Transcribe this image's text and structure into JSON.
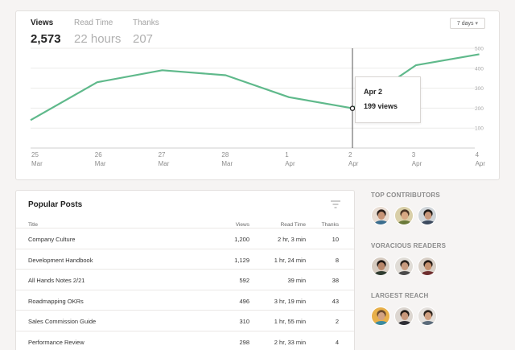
{
  "stats": {
    "metrics": [
      {
        "label": "Views",
        "value": "2,573"
      },
      {
        "label": "Read Time",
        "value": "22 hours"
      },
      {
        "label": "Thanks",
        "value": "207"
      }
    ],
    "range": {
      "label": "7 days",
      "arrow": "▾"
    }
  },
  "chart_data": {
    "type": "line",
    "x_labels": [
      [
        "25",
        "Mar"
      ],
      [
        "26",
        "Mar"
      ],
      [
        "27",
        "Mar"
      ],
      [
        "28",
        "Mar"
      ],
      [
        "1",
        "Apr"
      ],
      [
        "2",
        "Apr"
      ],
      [
        "3",
        "Apr"
      ],
      [
        "4",
        "Apr"
      ]
    ],
    "values": [
      185,
      330,
      390,
      365,
      255,
      199,
      415,
      470
    ],
    "extra_start_value": 140,
    "y_ticks": [
      100,
      200,
      300,
      400,
      500
    ],
    "ylim": [
      0,
      500
    ],
    "line_color": "#5fb98b",
    "highlight_index": 5,
    "tooltip": {
      "date": "Apr 2",
      "value": "199 views"
    }
  },
  "posts": {
    "title": "Popular Posts",
    "columns": {
      "title": "Title",
      "views": "Views",
      "time": "Read Time",
      "thanks": "Thanks"
    },
    "rows": [
      {
        "title": "Company Culture",
        "views": "1,200",
        "time": "2 hr, 3 min",
        "thanks": "10"
      },
      {
        "title": "Development Handbook",
        "views": "1,129",
        "time": "1 hr, 24 min",
        "thanks": "8"
      },
      {
        "title": "All Hands Notes 2/21",
        "views": "592",
        "time": "39 min",
        "thanks": "38"
      },
      {
        "title": "Roadmapping OKRs",
        "views": "496",
        "time": "3 hr, 19 min",
        "thanks": "43"
      },
      {
        "title": "Sales Commission Guide",
        "views": "310",
        "time": "1 hr, 55 min",
        "thanks": "2"
      },
      {
        "title": "Performance Review",
        "views": "298",
        "time": "2 hr, 33 min",
        "thanks": "4"
      }
    ]
  },
  "sidebar": {
    "sections": [
      {
        "title": "TOP CONTRIBUTORS",
        "avatars": [
          {
            "skin": "#c89577",
            "hair": "#2a1f1a",
            "shirt": "#3b6e8f",
            "bg": "#e9ddd3"
          },
          {
            "skin": "#d7a883",
            "hair": "#4a3525",
            "shirt": "#6b7a3a",
            "bg": "#d9cfa8"
          },
          {
            "skin": "#c7977b",
            "hair": "#1f1a17",
            "shirt": "#3c4a5e",
            "bg": "#cfd4d8"
          }
        ]
      },
      {
        "title": "VORACIOUS READERS",
        "avatars": [
          {
            "skin": "#b9876a",
            "hair": "#1e1713",
            "shirt": "#2e3b2f",
            "bg": "#d6cbc0"
          },
          {
            "skin": "#c89a7e",
            "hair": "#2b221c",
            "shirt": "#4a4a4a",
            "bg": "#e0dcd6"
          },
          {
            "skin": "#c4906e",
            "hair": "#241a15",
            "shirt": "#6e2d2d",
            "bg": "#d8cfc6"
          }
        ]
      },
      {
        "title": "LARGEST REACH",
        "avatars": [
          {
            "skin": "#d2a283",
            "hair": "#6a4a2e",
            "shirt": "#3a8aa0",
            "bg": "#e8b04a"
          },
          {
            "skin": "#c8977a",
            "hair": "#231b16",
            "shirt": "#2f2f35",
            "bg": "#dcd6d0"
          },
          {
            "skin": "#cf9f80",
            "hair": "#2e241d",
            "shirt": "#5b6b7a",
            "bg": "#e4e0dc"
          }
        ]
      }
    ]
  }
}
